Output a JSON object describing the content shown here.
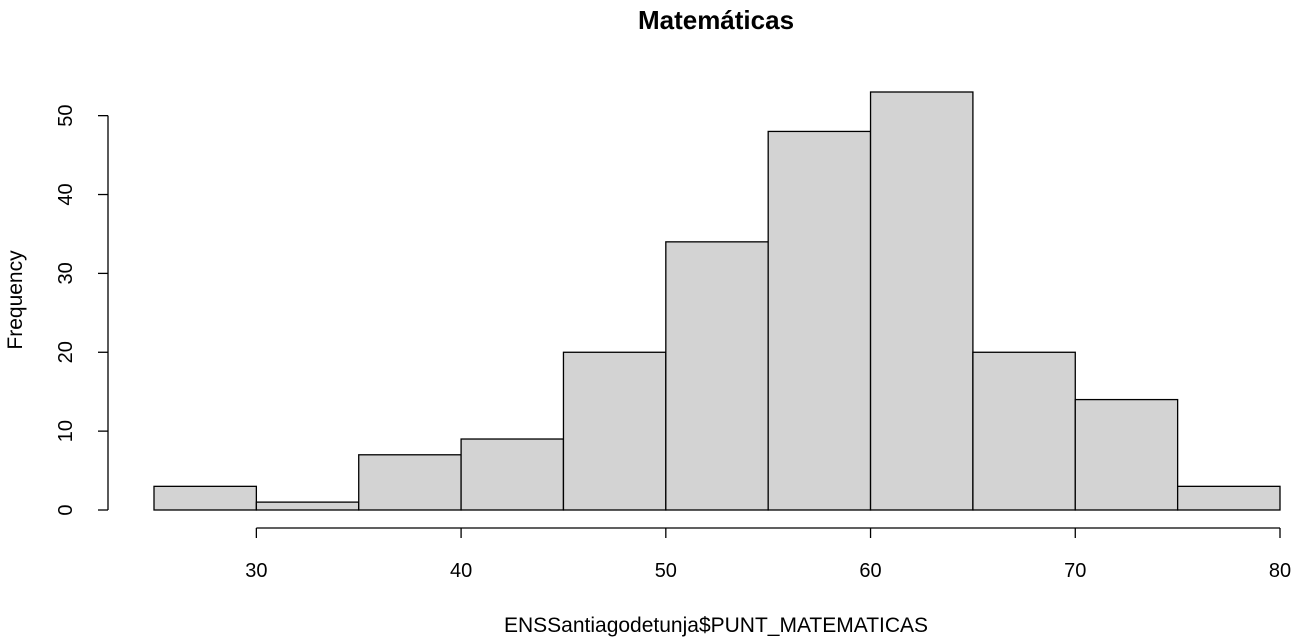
{
  "chart_data": {
    "type": "bar",
    "title": "Matemáticas",
    "xlabel": "ENSSantiagodetunja$PUNT_MATEMATICAS",
    "ylabel": "Frequency",
    "bin_edges": [
      25,
      30,
      35,
      40,
      45,
      50,
      55,
      60,
      65,
      70,
      75,
      80
    ],
    "values": [
      3,
      1,
      7,
      9,
      20,
      34,
      48,
      53,
      20,
      14,
      3
    ],
    "xlim": [
      25,
      80
    ],
    "ylim": [
      0,
      53
    ],
    "x_ticks": [
      30,
      40,
      50,
      60,
      70,
      80
    ],
    "y_ticks": [
      0,
      10,
      20,
      30,
      40,
      50
    ],
    "grid": false,
    "bar_fill": "#d3d3d3",
    "bar_stroke": "#000000"
  }
}
